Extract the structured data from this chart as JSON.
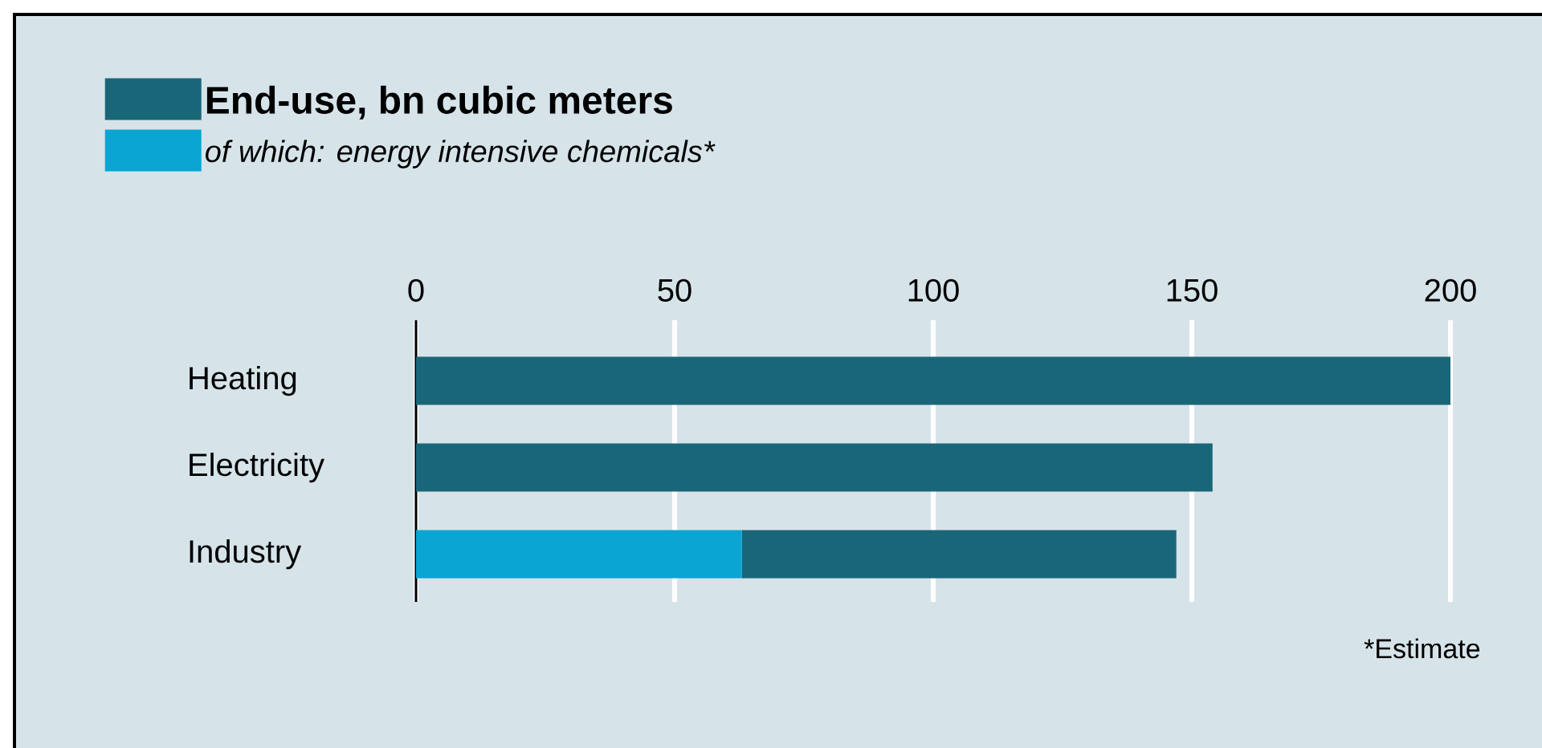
{
  "chart_data": {
    "type": "bar",
    "orientation": "horizontal",
    "stacked": true,
    "categories": [
      "Heating",
      "Electricity",
      "Industry"
    ],
    "series": [
      {
        "name": "of which: energy intensive chemicals*",
        "color": "#0aa5d2",
        "values": [
          0,
          0,
          63
        ]
      },
      {
        "name": "End-use, bn cubic meters",
        "color": "#1a6679",
        "values": [
          200,
          154,
          84
        ]
      }
    ],
    "xlim": [
      0,
      200
    ],
    "xticks": [
      0,
      50,
      100,
      150,
      200
    ],
    "grid": "x",
    "legend": "top left",
    "annotations": [
      "*Estimate"
    ]
  }
}
